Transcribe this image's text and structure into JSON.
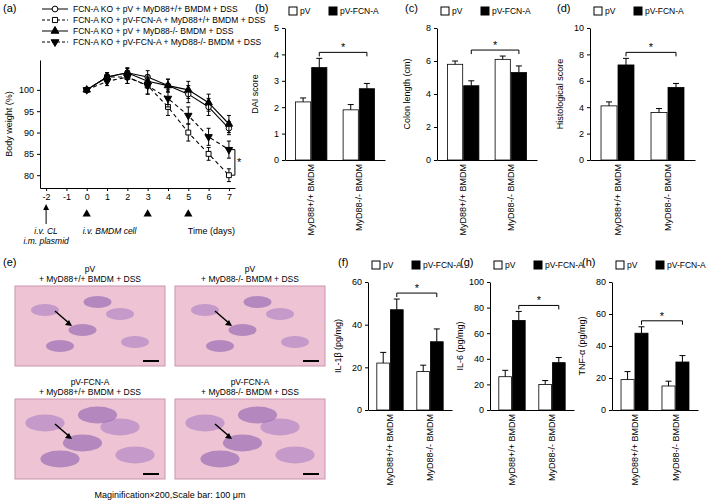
{
  "chart_data": [
    {
      "type": "line",
      "title": "(a)",
      "x_label": "Time (days)",
      "y_label": "Body weight (%)",
      "x": [
        0,
        1,
        2,
        3,
        4,
        5,
        6,
        7
      ],
      "xlim": [
        -2.3,
        7.3
      ],
      "xticks": [
        -2,
        -1,
        0,
        1,
        2,
        3,
        4,
        5,
        6,
        7
      ],
      "ylim": [
        77,
        107
      ],
      "yticks": [
        80,
        85,
        90,
        95,
        100
      ],
      "legend": "top",
      "annotation": "*",
      "events": [
        {
          "x": -2,
          "marker": "arrow",
          "labels": [
            "i.v. CL",
            "i.m. plasmid"
          ]
        },
        {
          "x": 0,
          "marker": "triangle",
          "labels": [
            "i.v. BMDM cell"
          ]
        },
        {
          "x": 3,
          "marker": "triangle"
        },
        {
          "x": 5,
          "marker": "triangle"
        }
      ],
      "series": [
        {
          "name": "FCN-A KO + pV + MyD88+/+ BMDM + DSS",
          "color": "#000000",
          "marker": "open-circle",
          "line_style": "solid",
          "values": [
            100,
            103,
            104,
            103,
            101,
            99,
            96,
            91
          ],
          "errors": [
            0,
            1,
            1.2,
            1.5,
            1.5,
            2,
            2,
            1.5
          ]
        },
        {
          "name": "FCN-A KO + pV-FCN-A + MyD88+/+ BMDM + DSS",
          "color": "#000000",
          "marker": "open-square",
          "line_style": "dashed",
          "values": [
            100,
            103,
            103,
            101,
            96,
            90,
            85,
            80
          ],
          "errors": [
            0,
            1,
            1.5,
            2,
            2,
            2,
            1.5,
            1.5
          ]
        },
        {
          "name": "FCN-A KO + pV + MyD88-/- BMDM + DSS",
          "color": "#000000",
          "marker": "triangle",
          "line_style": "solid",
          "values": [
            100,
            103,
            104,
            102,
            101,
            100,
            97,
            92
          ],
          "errors": [
            0,
            1,
            1,
            1.5,
            1.5,
            2,
            2,
            2
          ]
        },
        {
          "name": "FCN-A KO + pV-FCN-A + MyD88-/- BMDM + DSS",
          "color": "#000000",
          "marker": "triangle-down",
          "line_style": "dashed",
          "values": [
            100,
            102,
            103,
            101,
            98,
            94,
            89,
            86
          ],
          "errors": [
            0,
            1,
            1.5,
            2,
            2,
            2,
            2,
            2
          ]
        }
      ]
    },
    {
      "type": "bar",
      "title": "(b)",
      "y_label": "DAI score",
      "legend": "top",
      "annotation": "*",
      "categories": [
        "MyD88+/+ BMDM",
        "MyD88-/- BMDM"
      ],
      "ylim": [
        0,
        5
      ],
      "yticks": [
        0,
        1,
        2,
        3,
        4,
        5
      ],
      "series": [
        {
          "name": "pV",
          "color": "#ffffff",
          "values": [
            2.2,
            1.9
          ],
          "errors": [
            0.15,
            0.2
          ]
        },
        {
          "name": "pV-FCN-A",
          "color": "#000000",
          "values": [
            3.5,
            2.7
          ],
          "errors": [
            0.35,
            0.2
          ]
        }
      ]
    },
    {
      "type": "bar",
      "title": "(c)",
      "y_label": "Colon length (cm)",
      "legend": "top",
      "annotation": "*",
      "categories": [
        "MyD88+/+ BMDM",
        "MyD88-/- BMDM"
      ],
      "ylim": [
        0,
        8
      ],
      "yticks": [
        0,
        2,
        4,
        6,
        8
      ],
      "series": [
        {
          "name": "pV",
          "color": "#ffffff",
          "values": [
            5.8,
            6.1
          ],
          "errors": [
            0.2,
            0.2
          ]
        },
        {
          "name": "pV-FCN-A",
          "color": "#000000",
          "values": [
            4.5,
            5.3
          ],
          "errors": [
            0.3,
            0.4
          ]
        }
      ]
    },
    {
      "type": "bar",
      "title": "(d)",
      "y_label": "Histological score",
      "legend": "top",
      "annotation": "*",
      "categories": [
        "MyD88+/+ BMDM",
        "MyD88-/- BMDM"
      ],
      "ylim": [
        0,
        10
      ],
      "yticks": [
        0,
        2,
        4,
        6,
        8,
        10
      ],
      "series": [
        {
          "name": "pV",
          "color": "#ffffff",
          "values": [
            4.1,
            3.6
          ],
          "errors": [
            0.3,
            0.3
          ]
        },
        {
          "name": "pV-FCN-A",
          "color": "#000000",
          "values": [
            7.2,
            5.5
          ],
          "errors": [
            0.5,
            0.3
          ]
        }
      ]
    },
    {
      "type": "image",
      "title": "(e)",
      "panels": [
        {
          "title": [
            "pV",
            "+ MyD88+/+ BMDM + DSS"
          ]
        },
        {
          "title": [
            "pV",
            "+ MyD88-/- BMDM + DSS"
          ]
        },
        {
          "title": [
            "pV-FCN-A",
            "+ MyD88+/+ BMDM + DSS"
          ]
        },
        {
          "title": [
            "pV-FCN-A",
            "+ MyD88-/- BMDM + DSS"
          ]
        }
      ],
      "caption": "Maginification×200,Scale bar: 100 μm"
    },
    {
      "type": "bar",
      "title": "(f)",
      "y_label": "IL-1β (pg/mg)",
      "legend": "top",
      "annotation": "*",
      "categories": [
        "MyD88+/+ BMDM",
        "MyD88-/- BMDM"
      ],
      "ylim": [
        0,
        60
      ],
      "yticks": [
        0,
        20,
        40,
        60
      ],
      "series": [
        {
          "name": "pV",
          "color": "#ffffff",
          "values": [
            22,
            18
          ],
          "errors": [
            5,
            3
          ]
        },
        {
          "name": "pV-FCN-A",
          "color": "#000000",
          "values": [
            47,
            32
          ],
          "errors": [
            5,
            6
          ]
        }
      ]
    },
    {
      "type": "bar",
      "title": "(g)",
      "y_label": "IL-6 (pg/mg)",
      "legend": "top",
      "annotation": "*",
      "categories": [
        "MyD88+/+ BMDM",
        "MyD88-/- BMDM"
      ],
      "ylim": [
        0,
        100
      ],
      "yticks": [
        0,
        20,
        40,
        60,
        80,
        100
      ],
      "series": [
        {
          "name": "pV",
          "color": "#ffffff",
          "values": [
            26,
            20
          ],
          "errors": [
            5,
            3
          ]
        },
        {
          "name": "pV-FCN-A",
          "color": "#000000",
          "values": [
            70,
            37
          ],
          "errors": [
            7,
            4
          ]
        }
      ]
    },
    {
      "type": "bar",
      "title": "(h)",
      "y_label": "TNF-α (pg/mg)",
      "legend": "top",
      "annotation": "*",
      "categories": [
        "MyD88+/+ BMDM",
        "MyD88-/- BMDM"
      ],
      "ylim": [
        0,
        80
      ],
      "yticks": [
        0,
        20,
        40,
        60,
        80
      ],
      "series": [
        {
          "name": "pV",
          "color": "#ffffff",
          "values": [
            19,
            15
          ],
          "errors": [
            5,
            3
          ]
        },
        {
          "name": "pV-FCN-A",
          "color": "#000000",
          "values": [
            48,
            30
          ],
          "errors": [
            4,
            4
          ]
        }
      ]
    }
  ]
}
